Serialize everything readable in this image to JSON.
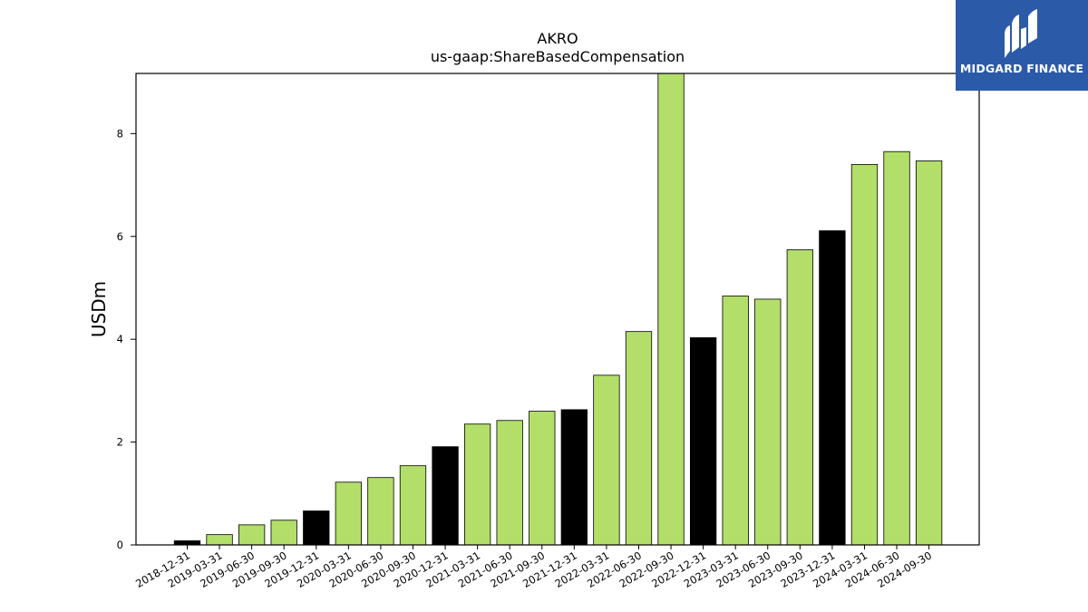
{
  "logo": {
    "text": "MIDGARD FINANCE",
    "background": "#2b5aa8"
  },
  "chart_data": {
    "type": "bar",
    "title": "AKRO",
    "subtitle": "us-gaap:ShareBasedCompensation",
    "xlabel": "",
    "ylabel": "USDm",
    "ylim": [
      0,
      9.17
    ],
    "yticks": [
      0,
      2,
      4,
      6,
      8
    ],
    "grid": false,
    "colors": {
      "quarter": "#b3de6a",
      "year_end": "#000000",
      "edge": "#000000"
    },
    "categories": [
      "2018-12-31",
      "2019-03-31",
      "2019-06-30",
      "2019-09-30",
      "2019-12-31",
      "2020-03-31",
      "2020-06-30",
      "2020-09-30",
      "2020-12-31",
      "2021-03-31",
      "2021-06-30",
      "2021-09-30",
      "2021-12-31",
      "2022-03-31",
      "2022-06-30",
      "2022-09-30",
      "2022-12-31",
      "2023-03-31",
      "2023-06-30",
      "2023-09-30",
      "2023-12-31",
      "2024-03-31",
      "2024-06-30",
      "2024-09-30"
    ],
    "values": [
      0.08,
      0.2,
      0.39,
      0.48,
      0.66,
      1.22,
      1.31,
      1.54,
      1.91,
      2.35,
      2.42,
      2.6,
      2.63,
      3.3,
      4.15,
      9.3,
      4.03,
      4.84,
      4.78,
      5.74,
      6.11,
      7.4,
      7.65,
      7.47
    ],
    "is_year_end": [
      true,
      false,
      false,
      false,
      true,
      false,
      false,
      false,
      true,
      false,
      false,
      false,
      true,
      false,
      false,
      false,
      true,
      false,
      false,
      false,
      true,
      false,
      false,
      false
    ]
  }
}
